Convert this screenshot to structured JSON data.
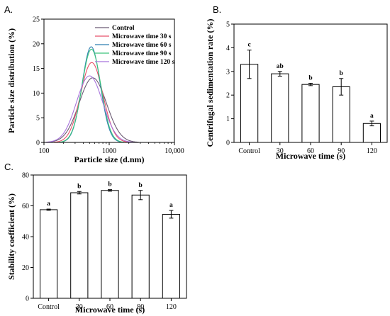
{
  "panels": {
    "a": "A.",
    "b": "B.",
    "c": "C."
  },
  "chart_data": [
    {
      "type": "line",
      "panel": "A.",
      "xlabel": "Particle size (d.nm)",
      "ylabel": "Particle size distribution (%)",
      "xscale": "log",
      "xlim": [
        100,
        10000
      ],
      "ylim": [
        0,
        25
      ],
      "x_ticks": [
        100,
        1000,
        10000
      ],
      "x_tick_labels": [
        "100",
        "1000",
        "10,000"
      ],
      "y_ticks": [
        0,
        5,
        10,
        15,
        20,
        25
      ],
      "legend_position": "top-right",
      "series": [
        {
          "name": "Control",
          "color": "#6b5b73",
          "peak": 13.1,
          "center": 560,
          "sigma_log10": 0.21
        },
        {
          "name": "Microwave time 30 s",
          "color": "#e8506a",
          "peak": 16.2,
          "center": 540,
          "sigma_log10": 0.17
        },
        {
          "name": "Microwave time 60 s",
          "color": "#2e7fb0",
          "peak": 19.4,
          "center": 530,
          "sigma_log10": 0.14
        },
        {
          "name": "Microwave time 90 s",
          "color": "#3cc47c",
          "peak": 18.9,
          "center": 535,
          "sigma_log10": 0.145
        },
        {
          "name": "Microwave time 120 s",
          "color": "#a874dc",
          "peak": 13.5,
          "center": 500,
          "sigma_log10": 0.2
        }
      ]
    },
    {
      "type": "bar",
      "panel": "B.",
      "xlabel": "Microwave time (s)",
      "ylabel": "Centrifugal sedimentation rate (%)",
      "categories": [
        "Control",
        "30",
        "60",
        "90",
        "120"
      ],
      "values": [
        3.3,
        2.9,
        2.45,
        2.35,
        0.8
      ],
      "errors": [
        0.6,
        0.1,
        0.05,
        0.35,
        0.1
      ],
      "significance": [
        "c",
        "ab",
        "b",
        "b",
        "a"
      ],
      "ylim": [
        0,
        5
      ],
      "y_ticks": [
        0,
        1,
        2,
        3,
        4,
        5
      ]
    },
    {
      "type": "bar",
      "panel": "C.",
      "xlabel": "Microwave time (s)",
      "ylabel": "Stability coefficient (%)",
      "categories": [
        "Control",
        "30",
        "60",
        "90",
        "120"
      ],
      "values": [
        57.5,
        68.5,
        70.0,
        67.0,
        54.5
      ],
      "errors": [
        0.4,
        0.8,
        0.5,
        3.0,
        2.5
      ],
      "significance": [
        "a",
        "b",
        "b",
        "b",
        "a"
      ],
      "ylim": [
        0,
        80
      ],
      "y_ticks": [
        0,
        20,
        40,
        60,
        80
      ]
    }
  ]
}
